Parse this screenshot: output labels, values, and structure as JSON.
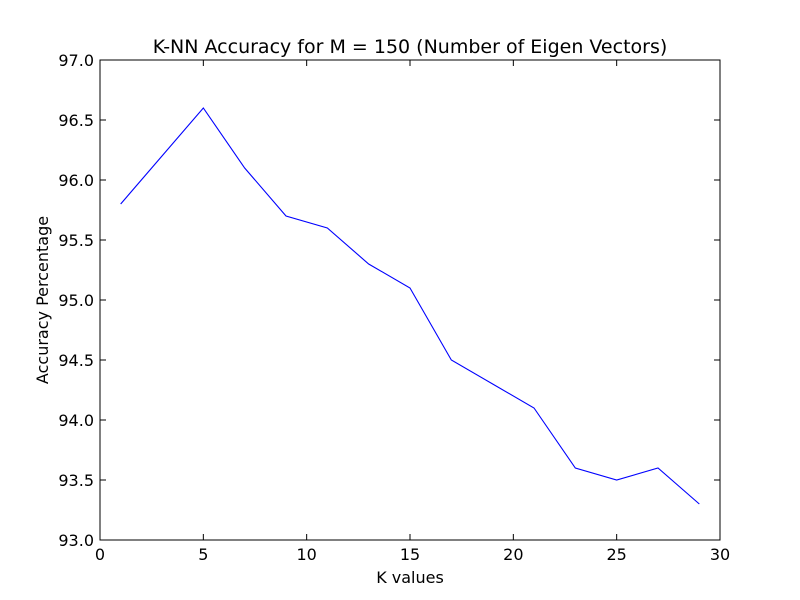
{
  "chart_data": {
    "type": "line",
    "title": "K-NN Accuracy for M = 150 (Number of Eigen Vectors)",
    "xlabel": "K values",
    "ylabel": "Accuracy Percentage",
    "xlim": [
      0,
      30
    ],
    "ylim": [
      93.0,
      97.0
    ],
    "xticks": [
      0,
      5,
      10,
      15,
      20,
      25,
      30
    ],
    "xtick_labels": [
      "0",
      "5",
      "10",
      "15",
      "20",
      "25",
      "30"
    ],
    "yticks": [
      93.0,
      93.5,
      94.0,
      94.5,
      95.0,
      95.5,
      96.0,
      96.5,
      97.0
    ],
    "ytick_labels": [
      "93.0",
      "93.5",
      "94.0",
      "94.5",
      "95.0",
      "95.5",
      "96.0",
      "96.5",
      "97.0"
    ],
    "grid": false,
    "series": [
      {
        "color": "#0000ff",
        "x": [
          1,
          3,
          5,
          7,
          9,
          11,
          13,
          15,
          17,
          19,
          21,
          23,
          25,
          27,
          29
        ],
        "y": [
          95.8,
          96.2,
          96.6,
          96.1,
          95.7,
          95.6,
          95.3,
          95.1,
          94.5,
          94.3,
          94.1,
          93.6,
          93.5,
          93.6,
          93.3
        ]
      }
    ]
  }
}
